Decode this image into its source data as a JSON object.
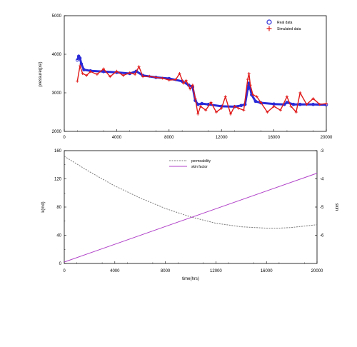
{
  "colors": {
    "real": "#2a2ad8",
    "simulated": "#e01818",
    "permeability": "#7a7a7a",
    "skin": "#b040c8",
    "axis": "#000000"
  },
  "chart_data": [
    {
      "type": "scatter",
      "title": "",
      "xlabel": "",
      "ylabel": "pressure(psi)",
      "xlim": [
        0,
        20000
      ],
      "ylim": [
        2000,
        5000
      ],
      "xticks": [
        "0",
        "4000",
        "8000",
        "12000",
        "16000",
        "20000"
      ],
      "yticks": [
        "2000",
        "3000",
        "4000",
        "5000"
      ],
      "legend_position": "top-right",
      "grid": false,
      "series": [
        {
          "name": "Real data",
          "marker": "circle",
          "x": [
            1000,
            1100,
            1200,
            1300,
            1500,
            2000,
            3000,
            4000,
            5000,
            5500,
            6000,
            7000,
            8000,
            9000,
            9500,
            9800,
            10000,
            10200,
            10500,
            11000,
            12000,
            13000,
            13500,
            13800,
            14000,
            14100,
            14300,
            14600,
            15000,
            16000,
            16800,
            17000,
            17500,
            18000,
            19000,
            20000
          ],
          "y": [
            3850,
            3950,
            3900,
            3750,
            3600,
            3570,
            3550,
            3530,
            3500,
            3560,
            3450,
            3400,
            3370,
            3300,
            3200,
            3150,
            2800,
            2700,
            2720,
            2700,
            2650,
            2640,
            2670,
            2700,
            3100,
            3250,
            2950,
            2780,
            2740,
            2710,
            2700,
            2750,
            2700,
            2700,
            2700,
            2690
          ]
        },
        {
          "name": "Simulated data",
          "marker": "plus",
          "x": [
            1000,
            1200,
            1400,
            1700,
            2000,
            2500,
            3000,
            3500,
            4000,
            4500,
            5000,
            5400,
            5700,
            6000,
            6500,
            7000,
            7500,
            8000,
            8500,
            8800,
            9100,
            9300,
            9600,
            9800,
            10000,
            10200,
            10400,
            10800,
            11200,
            11600,
            12000,
            12300,
            12700,
            13000,
            13300,
            13700,
            14000,
            14100,
            14200,
            14400,
            14700,
            15000,
            15500,
            16000,
            16500,
            17000,
            17300,
            17700,
            18000,
            18500,
            19000,
            19500,
            20000
          ],
          "y": [
            3300,
            3700,
            3500,
            3450,
            3550,
            3480,
            3620,
            3420,
            3560,
            3450,
            3520,
            3480,
            3680,
            3420,
            3430,
            3400,
            3380,
            3330,
            3340,
            3500,
            3250,
            3320,
            3100,
            3200,
            2850,
            2450,
            2650,
            2550,
            2750,
            2500,
            2600,
            2900,
            2450,
            2650,
            2600,
            2550,
            3350,
            3500,
            3200,
            2950,
            2900,
            2750,
            2500,
            2650,
            2550,
            2900,
            2650,
            2500,
            3000,
            2700,
            2850,
            2700,
            2720
          ]
        }
      ]
    },
    {
      "type": "line",
      "title": "",
      "xlabel": "time(hrs)",
      "ylabel": "k(md)",
      "ylabel_right": "skin",
      "xlim": [
        0,
        20000
      ],
      "ylim": [
        0,
        160
      ],
      "ylim_right": [
        -7,
        -3
      ],
      "xticks": [
        "0",
        "4000",
        "8000",
        "12000",
        "16000",
        "20000"
      ],
      "yticks": [
        "0",
        "40",
        "80",
        "120",
        "160"
      ],
      "yticks_right": [
        "-3",
        "-4",
        "-5",
        "-6"
      ],
      "legend_position": "top-center",
      "grid": false,
      "series": [
        {
          "name": "permeability",
          "axis": "left",
          "x": [
            0,
            2000,
            4000,
            6000,
            8000,
            10000,
            12000,
            14000,
            16000,
            17000,
            18000,
            20000
          ],
          "y": [
            152,
            130,
            110,
            93,
            78,
            66,
            57,
            52,
            50,
            50,
            51,
            55
          ]
        },
        {
          "name": "skin factor",
          "axis": "right",
          "x": [
            0,
            20000
          ],
          "y": [
            -6.95,
            -3.8
          ]
        }
      ]
    }
  ]
}
